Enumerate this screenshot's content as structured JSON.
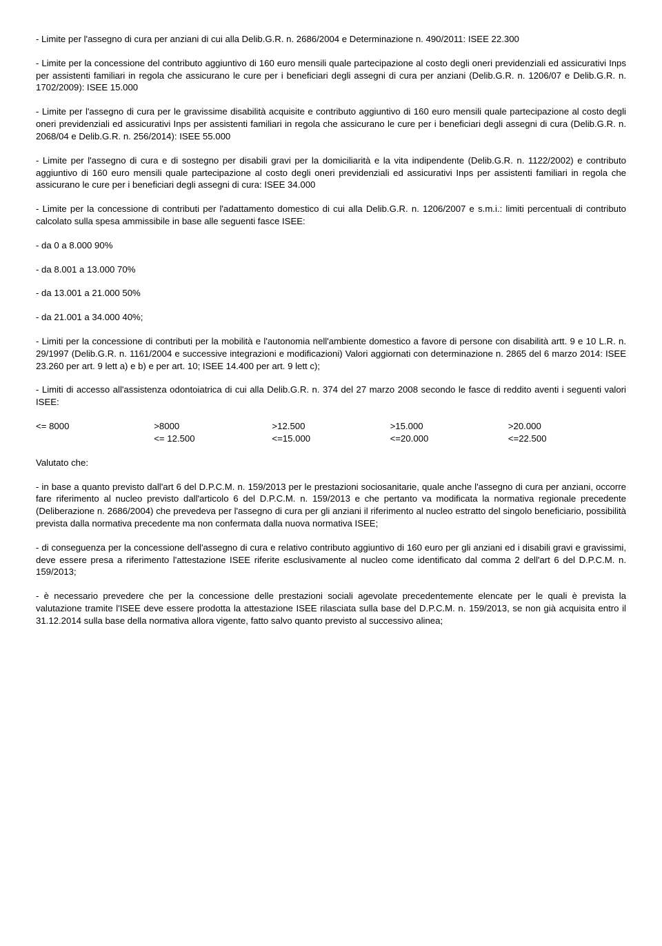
{
  "paragraphs": {
    "p1": "- Limite per l'assegno di cura per anziani di cui alla Delib.G.R. n. 2686/2004 e Determinazione n. 490/2011: ISEE 22.300",
    "p2": "- Limite per la concessione del contributo aggiuntivo di 160 euro mensili quale partecipazione al costo degli oneri previdenziali ed assicurativi Inps per assistenti familiari in regola che assicurano le cure per i beneficiari degli assegni di cura per anziani (Delib.G.R. n. 1206/07 e Delib.G.R. n. 1702/2009): ISEE 15.000",
    "p3": "- Limite per l'assegno di cura per le gravissime disabilità acquisite e contributo aggiuntivo di 160 euro mensili quale partecipazione al costo degli oneri previdenziali ed assicurativi Inps per assistenti familiari in regola che assicurano le cure per i beneficiari degli assegni di cura (Delib.G.R. n. 2068/04 e Delib.G.R. n. 256/2014): ISEE 55.000",
    "p4": "- Limite per l'assegno di cura e di sostegno per disabili gravi per la domiciliarità e la vita indipendente (Delib.G.R. n. 1122/2002) e contributo aggiuntivo di 160 euro mensili quale partecipazione al costo degli oneri previdenziali ed assicurativi Inps per assistenti familiari in regola che assicurano le cure per i beneficiari degli assegni di cura: ISEE 34.000",
    "p5": "- Limite per la concessione di contributi per l'adattamento domestico di cui alla Delib.G.R. n. 1206/2007 e s.m.i.: limiti percentuali di contributo calcolato sulla spesa ammissibile in base alle seguenti fasce ISEE:",
    "p6": "- da 0 a 8.000 90%",
    "p7": "- da 8.001 a 13.000 70%",
    "p8": "- da 13.001 a 21.000 50%",
    "p9": "- da 21.001 a 34.000 40%;",
    "p10": "- Limiti per la concessione di contributi per la mobilità e l'autonomia nell'ambiente domestico a favore di persone con disabilità artt. 9 e 10 L.R. n. 29/1997 (Delib.G.R. n. 1161/2004 e successive integrazioni e modificazioni) Valori aggiornati con determinazione n. 2865 del 6 marzo 2014: ISEE 23.260 per art. 9 lett a) e b) e per art. 10; ISEE 14.400 per art. 9 lett c);",
    "p11": "- Limiti di accesso all'assistenza odontoiatrica di cui alla Delib.G.R. n. 374 del 27 marzo 2008 secondo le fasce di reddito aventi i seguenti valori ISEE:",
    "p12": "Valutato che:",
    "p13": "- in base a quanto previsto dall'art 6 del D.P.C.M. n. 159/2013 per le prestazioni sociosanitarie, quale anche l'assegno di cura per anziani, occorre fare riferimento al nucleo previsto dall'articolo 6 del D.P.C.M. n. 159/2013 e che pertanto va modificata la normativa regionale precedente (Deliberazione n. 2686/2004) che prevedeva per l'assegno di cura per gli anziani il riferimento al nucleo estratto del singolo beneficiario, possibilità prevista dalla normativa precedente ma non confermata dalla nuova normativa ISEE;",
    "p14": "- di conseguenza per la concessione dell'assegno di cura e relativo contributo aggiuntivo di 160 euro per gli anziani ed i disabili gravi e gravissimi, deve essere presa a riferimento l'attestazione ISEE riferite esclusivamente al nucleo come identificato dal comma 2 dell'art 6 del D.P.C.M. n. 159/2013;",
    "p15": "- è necessario prevedere che per la concessione delle prestazioni sociali agevolate precedentemente elencate per le quali è prevista la valutazione tramite l'ISEE deve essere prodotta la attestazione ISEE rilasciata sulla base del D.P.C.M. n. 159/2013, se non già acquisita entro il 31.12.2014 sulla base della normativa allora vigente, fatto salvo quanto previsto al successivo alinea;"
  },
  "table": {
    "row1": [
      "<= 8000",
      ">8000",
      ">12.500",
      ">15.000",
      ">20.000"
    ],
    "row2": [
      "",
      "<= 12.500",
      "<=15.000",
      "<=20.000",
      "<=22.500"
    ]
  }
}
